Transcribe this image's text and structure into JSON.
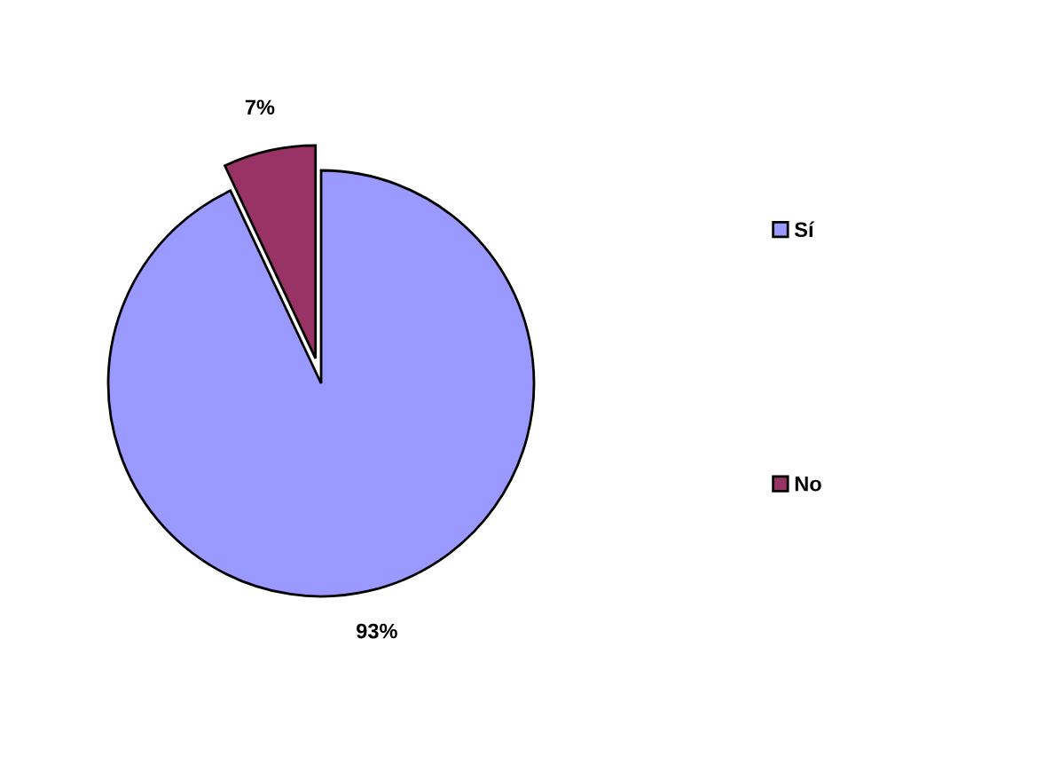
{
  "chart_data": {
    "type": "pie",
    "categories": [
      "Sí",
      "No"
    ],
    "values": [
      93,
      7
    ],
    "colors": [
      "#9999ff",
      "#993366"
    ],
    "value_labels": [
      "93%",
      "7%"
    ],
    "legend": "right"
  }
}
